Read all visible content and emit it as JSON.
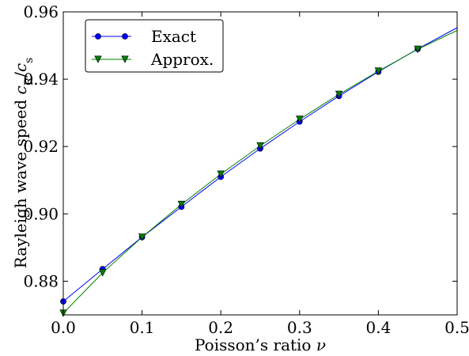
{
  "chart_data": {
    "type": "line",
    "title": "",
    "xlabel": "Poisson’s ratio ν",
    "ylabel": "Rayleigh wave speed c_R/c_s",
    "xlim": [
      0.0,
      0.5
    ],
    "ylim": [
      0.87,
      0.96
    ],
    "xticks": [
      0.0,
      0.1,
      0.2,
      0.3,
      0.4,
      0.5
    ],
    "xtick_labels": [
      "0.0",
      "0.1",
      "0.2",
      "0.3",
      "0.4",
      "0.5"
    ],
    "yticks": [
      0.88,
      0.9,
      0.92,
      0.94,
      0.96
    ],
    "ytick_labels": [
      "0.88",
      "0.90",
      "0.92",
      "0.94",
      "0.96"
    ],
    "grid": false,
    "legend_position": "top-left",
    "series": [
      {
        "name": "Exact",
        "color": "#0000ff",
        "marker": "circle",
        "x": [
          0.0,
          0.05,
          0.1,
          0.15,
          0.2,
          0.25,
          0.3,
          0.35,
          0.4,
          0.45,
          0.5
        ],
        "y": [
          0.874,
          0.8836,
          0.8931,
          0.9021,
          0.911,
          0.9194,
          0.9274,
          0.935,
          0.9422,
          0.949,
          0.9553
        ],
        "marker_x": [
          0.0,
          0.05,
          0.1,
          0.15,
          0.2,
          0.25,
          0.3,
          0.35,
          0.4,
          0.45
        ],
        "marker_y": [
          0.874,
          0.8836,
          0.8931,
          0.9021,
          0.911,
          0.9194,
          0.9274,
          0.935,
          0.9422,
          0.949
        ]
      },
      {
        "name": "Approx.",
        "color": "#007f00",
        "marker": "triangle-down",
        "x": [
          0.0,
          0.05,
          0.1,
          0.15,
          0.2,
          0.25,
          0.3,
          0.35,
          0.4,
          0.45,
          0.5
        ],
        "y": [
          0.8705,
          0.8825,
          0.8931,
          0.9028,
          0.9118,
          0.9202,
          0.9281,
          0.9355,
          0.9424,
          0.9489,
          0.9545
        ],
        "marker_x": [
          0.0,
          0.05,
          0.1,
          0.15,
          0.2,
          0.25,
          0.3,
          0.35,
          0.4,
          0.45
        ],
        "marker_y": [
          0.8705,
          0.8825,
          0.8931,
          0.9028,
          0.9118,
          0.9202,
          0.9281,
          0.9355,
          0.9424,
          0.9489
        ]
      }
    ]
  }
}
